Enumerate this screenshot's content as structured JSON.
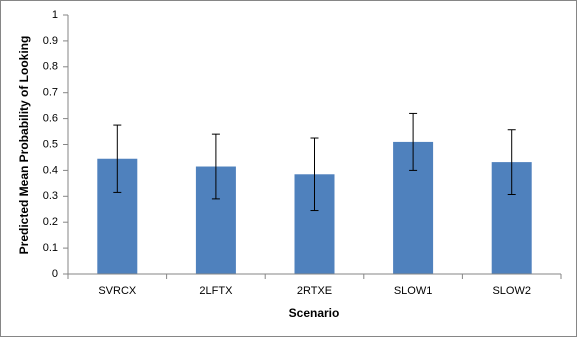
{
  "chart_data": {
    "type": "bar",
    "y_label": "Predicted Mean Probability of Looking",
    "x_label": "Scenario",
    "categories": [
      "SVRCX",
      "2LFTX",
      "2RTXE",
      "SLOW1",
      "SLOW2"
    ],
    "values": [
      0.445,
      0.415,
      0.385,
      0.51,
      0.432
    ],
    "errors": [
      0.13,
      0.125,
      0.14,
      0.11,
      0.125
    ],
    "color": "#4f81bd",
    "ylim": [
      0,
      1
    ],
    "yticks": [
      0,
      0.1,
      0.2,
      0.3,
      0.4,
      0.5,
      0.6,
      0.7,
      0.8,
      0.9,
      1
    ],
    "grid": false
  }
}
